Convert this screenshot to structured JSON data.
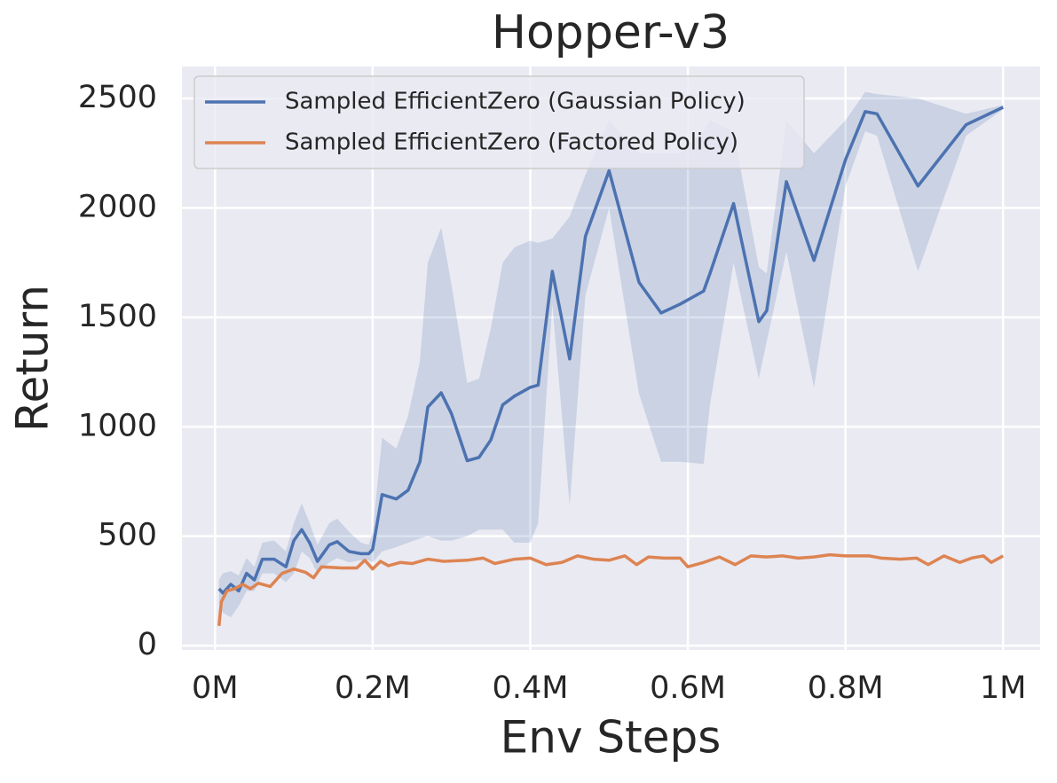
{
  "chart_data": {
    "type": "line",
    "title": "Hopper-v3",
    "x_label": "Env Steps",
    "y_label": "Return",
    "xlim": [
      -42000,
      1047000
    ],
    "ylim": [
      -20,
      2646
    ],
    "xticks": [
      {
        "value": 0,
        "label": "0M"
      },
      {
        "value": 200000,
        "label": "0.2M"
      },
      {
        "value": 400000,
        "label": "0.4M"
      },
      {
        "value": 600000,
        "label": "0.6M"
      },
      {
        "value": 800000,
        "label": "0.8M"
      },
      {
        "value": 1000000,
        "label": "1M"
      }
    ],
    "yticks": [
      0,
      500,
      1000,
      1500,
      2000,
      2500
    ],
    "grid": true,
    "legend": "upper left",
    "series": [
      {
        "name": "Sampled EfficientZero (Gaussian Policy)",
        "color": "#4c72b0",
        "x": [
          5000,
          10000,
          20000,
          30000,
          40000,
          50000,
          60000,
          75000,
          90000,
          100000,
          110000,
          120000,
          130000,
          145000,
          155000,
          170000,
          185000,
          195000,
          200000,
          212000,
          230000,
          245000,
          260000,
          270000,
          287000,
          300000,
          320000,
          335000,
          350000,
          365000,
          380000,
          400000,
          410000,
          428000,
          450000,
          470000,
          500000,
          538000,
          566000,
          590000,
          620000,
          628000,
          658000,
          690000,
          700000,
          725000,
          760000,
          800000,
          825000,
          840000,
          892000,
          953000,
          1000000
        ],
        "values": [
          260,
          240,
          280,
          250,
          330,
          300,
          395,
          395,
          360,
          480,
          530,
          470,
          385,
          460,
          475,
          430,
          420,
          420,
          440,
          690,
          670,
          710,
          840,
          1090,
          1155,
          1060,
          845,
          860,
          940,
          1100,
          1140,
          1180,
          1190,
          1710,
          1310,
          1870,
          2170,
          1660,
          1520,
          1560,
          1620,
          1700,
          2020,
          1480,
          1530,
          2120,
          1760,
          2220,
          2440,
          2430,
          2100,
          2380,
          2460
        ],
        "lower": [
          200,
          150,
          130,
          180,
          250,
          250,
          330,
          330,
          290,
          330,
          430,
          400,
          330,
          380,
          400,
          380,
          390,
          390,
          380,
          430,
          450,
          470,
          490,
          500,
          480,
          480,
          500,
          530,
          530,
          530,
          470,
          470,
          560,
          1560,
          640,
          1600,
          2000,
          1150,
          840,
          840,
          830,
          1100,
          1750,
          1220,
          1390,
          1800,
          1180,
          2100,
          2350,
          2330,
          1710,
          2330,
          2450
        ],
        "upper": [
          300,
          330,
          340,
          320,
          400,
          360,
          470,
          480,
          430,
          560,
          650,
          560,
          460,
          560,
          580,
          520,
          470,
          460,
          520,
          950,
          900,
          1050,
          1300,
          1750,
          1910,
          1650,
          1200,
          1220,
          1450,
          1750,
          1820,
          1850,
          1840,
          1860,
          1960,
          2150,
          2400,
          2250,
          2250,
          2250,
          2350,
          2400,
          2350,
          1730,
          1700,
          2400,
          2250,
          2400,
          2530,
          2520,
          2500,
          2430,
          2470
        ]
      },
      {
        "name": "Sampled EfficientZero (Factored Policy)",
        "color": "#dd8452",
        "x": [
          5000,
          8000,
          15000,
          25000,
          35000,
          45000,
          55000,
          70000,
          85000,
          100000,
          115000,
          125000,
          135000,
          160000,
          180000,
          190000,
          200000,
          210000,
          220000,
          235000,
          250000,
          270000,
          290000,
          320000,
          340000,
          355000,
          380000,
          400000,
          420000,
          440000,
          460000,
          480000,
          500000,
          520000,
          535000,
          550000,
          570000,
          590000,
          600000,
          620000,
          640000,
          660000,
          680000,
          700000,
          720000,
          740000,
          760000,
          780000,
          800000,
          830000,
          845000,
          870000,
          890000,
          905000,
          925000,
          945000,
          960000,
          975000,
          985000,
          1000000
        ],
        "values": [
          90,
          200,
          250,
          260,
          280,
          260,
          285,
          270,
          330,
          350,
          335,
          310,
          360,
          355,
          355,
          390,
          350,
          385,
          365,
          380,
          375,
          395,
          385,
          390,
          400,
          375,
          395,
          400,
          370,
          380,
          410,
          395,
          390,
          410,
          370,
          405,
          400,
          400,
          360,
          380,
          405,
          370,
          410,
          405,
          410,
          400,
          405,
          415,
          410,
          410,
          400,
          395,
          400,
          370,
          410,
          380,
          400,
          410,
          380,
          410
        ]
      }
    ]
  }
}
